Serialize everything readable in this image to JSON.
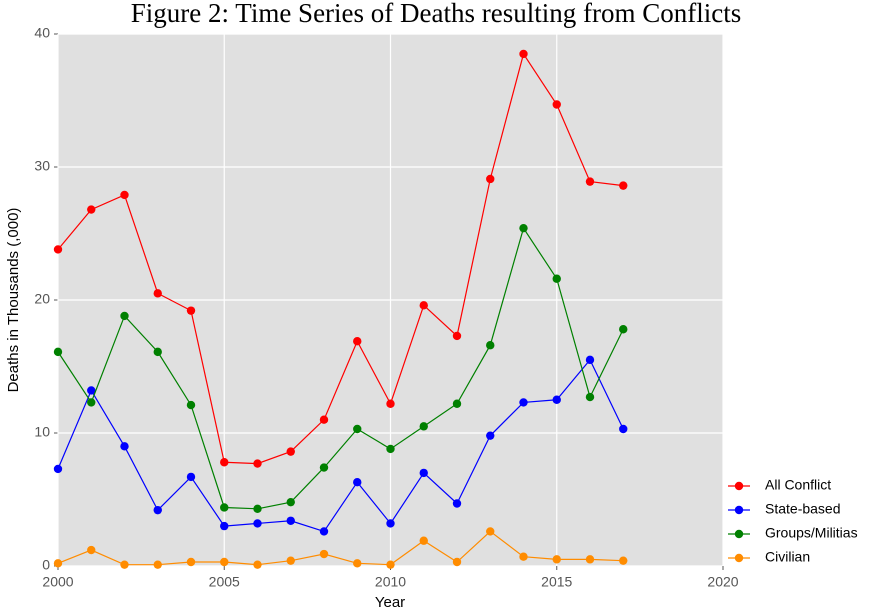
{
  "chart_data": {
    "type": "line",
    "title": "Figure 2: Time Series of Deaths resulting from Conflicts",
    "x_label": "Year",
    "y_label": "Deaths in Thousands (,000)",
    "x": [
      2000,
      2001,
      2002,
      2003,
      2004,
      2005,
      2006,
      2007,
      2008,
      2009,
      2010,
      2011,
      2012,
      2013,
      2014,
      2015,
      2016,
      2017
    ],
    "series": [
      {
        "name": "All Conflict",
        "color": "#ff0000",
        "values": [
          23.8,
          26.8,
          27.9,
          20.5,
          19.2,
          7.8,
          7.7,
          8.6,
          11.0,
          16.9,
          12.2,
          19.6,
          17.3,
          29.1,
          38.5,
          34.7,
          28.9,
          28.6
        ]
      },
      {
        "name": "State-based",
        "color": "#0000ff",
        "values": [
          7.3,
          13.2,
          9.0,
          4.2,
          6.7,
          3.0,
          3.2,
          3.4,
          2.6,
          6.3,
          3.2,
          7.0,
          4.7,
          9.8,
          12.3,
          12.5,
          15.5,
          10.3
        ]
      },
      {
        "name": "Groups/Militias",
        "color": "#008000",
        "values": [
          16.1,
          12.3,
          18.8,
          16.1,
          12.1,
          4.4,
          4.3,
          4.8,
          7.4,
          10.3,
          8.8,
          10.5,
          12.2,
          16.6,
          25.4,
          21.6,
          12.7,
          17.8
        ]
      },
      {
        "name": "Civilian",
        "color": "#ff8c00",
        "values": [
          0.2,
          1.2,
          0.1,
          0.1,
          0.3,
          0.3,
          0.1,
          0.4,
          0.9,
          0.2,
          0.1,
          1.9,
          0.3,
          2.6,
          0.7,
          0.5,
          0.5,
          0.4
        ]
      }
    ],
    "xlim": [
      2000,
      2020
    ],
    "xticks": [
      2000,
      2005,
      2010,
      2015,
      2020
    ],
    "ylim": [
      0,
      40
    ],
    "yticks": [
      0,
      10,
      20,
      30,
      40
    ],
    "grid": true,
    "legend": "bottom-right"
  }
}
